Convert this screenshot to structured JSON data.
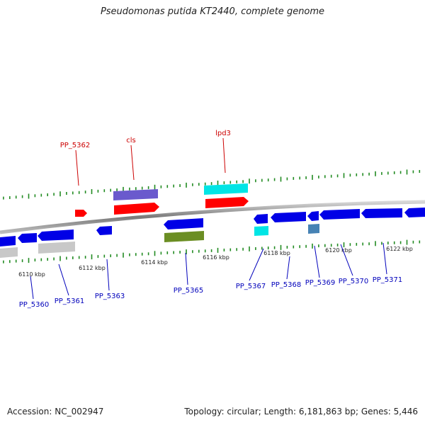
{
  "title": "Pseudomonas putida KT2440, complete genome",
  "footer": {
    "accession": "Accession: NC_002947",
    "topology": "Topology: circular; Length: 6,181,863 bp; Genes: 5,446"
  },
  "colors": {
    "backbone": "#8a8a8a",
    "blue": "#0000e6",
    "red": "#ff0000",
    "cyan": "#00e5e5",
    "purple": "#6a5acd",
    "olive": "#6b8e23",
    "gray": "#c8c8c8",
    "steel": "#4682b4",
    "tick": "#228b22"
  },
  "kbp_labels": [
    "6110 kbp",
    "6112 kbp",
    "6114 kbp",
    "6116 kbp",
    "6118 kbp",
    "6120 kbp",
    "6122 kbp"
  ],
  "top_labels": [
    "PP_5362",
    "cls",
    "lpd3"
  ],
  "bottom_labels": [
    "PP_5360",
    "PP_5361",
    "PP_5363",
    "PP_5365",
    "PP_5367",
    "PP_5368",
    "PP_5369",
    "PP_5370",
    "PP_5371"
  ]
}
